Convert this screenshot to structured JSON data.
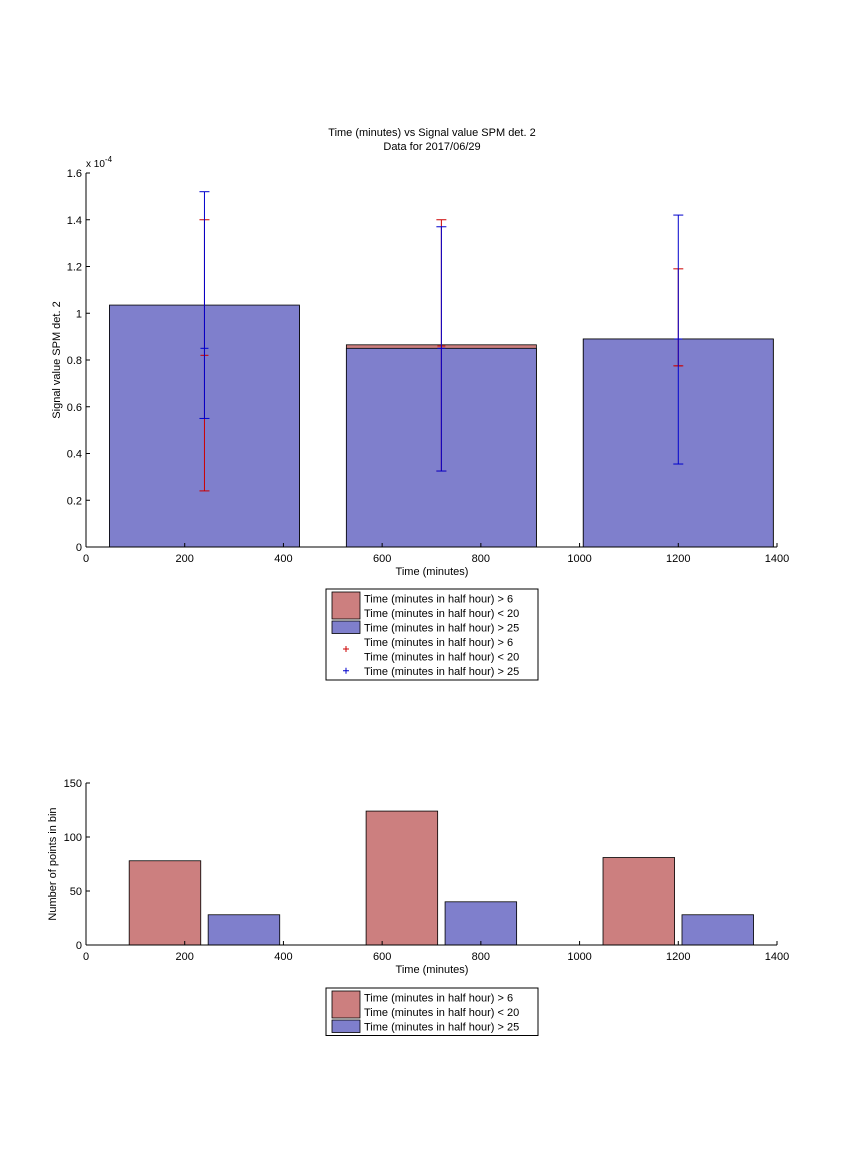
{
  "colors": {
    "bar_red": "#cc7f7f",
    "bar_blue": "#7f7fcc",
    "err_red": "#cc0000",
    "err_blue": "#0000cc",
    "axis": "#000000"
  },
  "chart_data": [
    {
      "type": "bar",
      "title": "Time (minutes) vs Signal value SPM det. 2",
      "subtitle": "Data for 2017/06/29",
      "xlabel": "Time (minutes)",
      "ylabel": "Signal value SPM det. 2",
      "y_exponent_label": "x 10",
      "y_exponent_power": "-4",
      "xlim": [
        0,
        1400
      ],
      "ylim": [
        0,
        1.6
      ],
      "xticks": [
        "0",
        "200",
        "400",
        "600",
        "800",
        "1000",
        "1200",
        "1400"
      ],
      "yticks": [
        "0",
        "0.2",
        "0.4",
        "0.6",
        "0.8",
        "1",
        "1.2",
        "1.4",
        "1.6"
      ],
      "bin_width": 385,
      "series": [
        {
          "name": "Time (minutes in half hour) > 6 Time (minutes in half hour) < 20",
          "legend_lines": [
            "Time (minutes in half hour) > 6",
            "Time (minutes in half hour) < 20"
          ],
          "color": "#cc7f7f",
          "centers": [
            240,
            720,
            1200
          ],
          "values": [
            1.03,
            0.865,
            0.89
          ]
        },
        {
          "name": "Time (minutes in half hour) > 25",
          "legend_lines": [
            "Time (minutes in half hour) > 25"
          ],
          "color": "#7f7fcc",
          "centers": [
            240,
            720,
            1200
          ],
          "values": [
            1.035,
            0.85,
            0.89
          ]
        }
      ],
      "errorbars": [
        {
          "name": "Time (minutes in half hour) > 6 Time (minutes in half hour) < 20",
          "legend_lines": [
            "Time (minutes in half hour) > 6",
            "Time (minutes in half hour) < 20"
          ],
          "color": "#cc0000",
          "x": [
            240,
            720,
            1200
          ],
          "y": [
            0.82,
            0.86,
            0.775
          ],
          "low": [
            0.24,
            0.325,
            0.775
          ],
          "high": [
            1.4,
            1.4,
            1.19
          ]
        },
        {
          "name": "Time (minutes in half hour) > 25",
          "legend_lines": [
            "Time (minutes in half hour) > 25"
          ],
          "color": "#0000cc",
          "x": [
            240,
            720,
            1200
          ],
          "y": [
            0.85,
            0.85,
            0.89
          ],
          "low": [
            0.55,
            0.325,
            0.355
          ],
          "high": [
            1.52,
            1.37,
            1.42
          ]
        }
      ],
      "legend_location": "below"
    },
    {
      "type": "bar",
      "xlabel": "Time (minutes)",
      "ylabel": "Number of points in bin",
      "xlim": [
        0,
        1400
      ],
      "ylim": [
        0,
        150
      ],
      "xticks": [
        "0",
        "200",
        "400",
        "600",
        "800",
        "1000",
        "1200",
        "1400"
      ],
      "yticks": [
        "0",
        "50",
        "100",
        "150"
      ],
      "bin_width": 145,
      "series": [
        {
          "name": "Time (minutes in half hour) > 6 Time (minutes in half hour) < 20",
          "legend_lines": [
            "Time (minutes in half hour) > 6",
            "Time (minutes in half hour) < 20"
          ],
          "color": "#cc7f7f",
          "centers": [
            160,
            640,
            1120
          ],
          "values": [
            78,
            124,
            81
          ]
        },
        {
          "name": "Time (minutes in half hour) > 25",
          "legend_lines": [
            "Time (minutes in half hour) > 25"
          ],
          "color": "#7f7fcc",
          "centers": [
            320,
            800,
            1280
          ],
          "values": [
            28,
            40,
            28
          ]
        }
      ],
      "legend_location": "below"
    }
  ]
}
